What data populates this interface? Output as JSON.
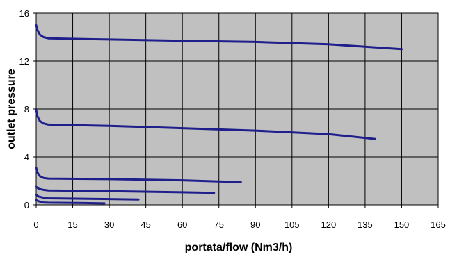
{
  "chart_data": {
    "type": "line",
    "title": "",
    "xlabel": "portata/flow (Nm3/h)",
    "ylabel": "outlet pressure",
    "xlim": [
      0,
      165
    ],
    "ylim": [
      0,
      16
    ],
    "x_ticks": [
      "0",
      "15",
      "30",
      "45",
      "60",
      "75",
      "90",
      "105",
      "120",
      "135",
      "150",
      "165"
    ],
    "y_ticks": [
      "0",
      "4",
      "8",
      "12",
      "16"
    ],
    "grid": true,
    "legend": "none",
    "colors": {
      "plot_background": "#c0c0c0",
      "grid": "#000000",
      "series": "#1f1f8c"
    },
    "series": [
      {
        "x": [
          0,
          0.5,
          1.5,
          3,
          5,
          30,
          60,
          90,
          120,
          150
        ],
        "y": [
          15.0,
          14.6,
          14.2,
          14.0,
          13.9,
          13.8,
          13.7,
          13.6,
          13.4,
          13.0
        ]
      },
      {
        "x": [
          0,
          0.5,
          1.5,
          3,
          5,
          30,
          60,
          90,
          120,
          139
        ],
        "y": [
          7.9,
          7.4,
          7.0,
          6.8,
          6.7,
          6.6,
          6.4,
          6.2,
          5.9,
          5.5
        ]
      },
      {
        "x": [
          0,
          0.5,
          1.5,
          3,
          5,
          30,
          60,
          84
        ],
        "y": [
          3.1,
          2.7,
          2.4,
          2.25,
          2.2,
          2.15,
          2.05,
          1.9
        ]
      },
      {
        "x": [
          0,
          1,
          3,
          5,
          30,
          60,
          73
        ],
        "y": [
          1.5,
          1.35,
          1.25,
          1.2,
          1.15,
          1.05,
          1.0
        ]
      },
      {
        "x": [
          0,
          1,
          3,
          5,
          25,
          42
        ],
        "y": [
          0.85,
          0.7,
          0.6,
          0.55,
          0.5,
          0.45
        ]
      },
      {
        "x": [
          0,
          1,
          3,
          5,
          20,
          28
        ],
        "y": [
          0.4,
          0.3,
          0.2,
          0.18,
          0.15,
          0.12
        ]
      }
    ]
  }
}
